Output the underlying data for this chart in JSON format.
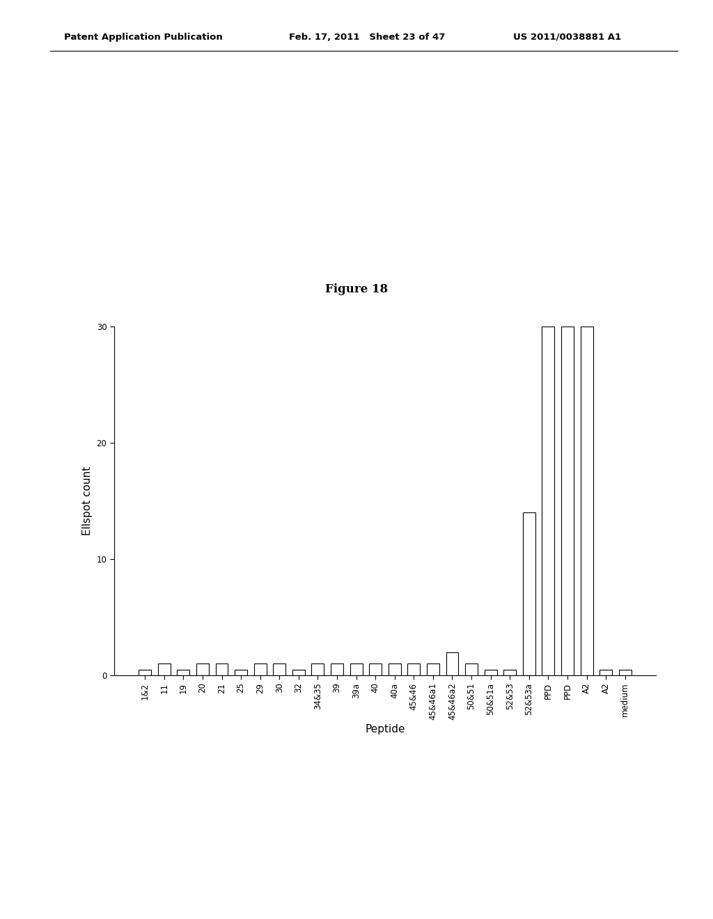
{
  "categories": [
    "1&2",
    "11",
    "19",
    "20",
    "21",
    "25",
    "29",
    "30",
    "32",
    "34&35",
    "39",
    "39a",
    "40",
    "40a",
    "45&46",
    "45&46a1",
    "45&46a2",
    "50&51",
    "50&51a",
    "52&53",
    "52&53a",
    "PPD",
    "PPD",
    "A2",
    "A2",
    "medium"
  ],
  "values": [
    0.5,
    1.0,
    0.5,
    1.0,
    1.0,
    0.5,
    1.0,
    1.0,
    0.5,
    1.0,
    1.0,
    1.0,
    1.0,
    1.0,
    1.0,
    1.0,
    2.0,
    1.0,
    0.5,
    0.5,
    14.0,
    30.0,
    30.0,
    30.0,
    0.5,
    0.5
  ],
  "bar_color": "white",
  "bar_edge_color": "#000000",
  "background_color": "#ffffff",
  "title": "Figure 18",
  "xlabel": "Peptide",
  "ylabel": "Ellspot count",
  "ylim": [
    0,
    30
  ],
  "yticks": [
    0,
    10,
    20,
    30
  ],
  "title_fontsize": 12,
  "axis_label_fontsize": 11,
  "tick_fontsize": 8.5,
  "header_left": "Patent Application Publication",
  "header_mid": "Feb. 17, 2011   Sheet 23 of 47",
  "header_right": "US 2011/0038881 A1",
  "header_fontsize": 9.5
}
